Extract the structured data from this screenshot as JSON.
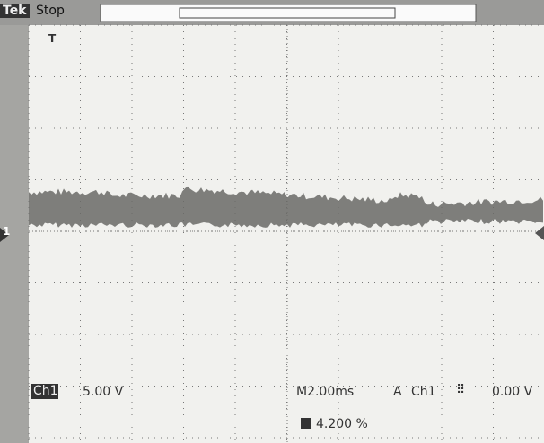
{
  "header": {
    "brand": "Tek",
    "status": "Stop"
  },
  "readouts": {
    "channel": "Ch1",
    "volts_per_div": "5.00 V",
    "timebase": "M2.00ms",
    "trigger_mode": "A",
    "trigger_source": "Ch1",
    "trigger_level": "0.00 V",
    "trigger_position": "4.200 %"
  },
  "markers": {
    "trigger": "T",
    "channel": "1"
  }
}
